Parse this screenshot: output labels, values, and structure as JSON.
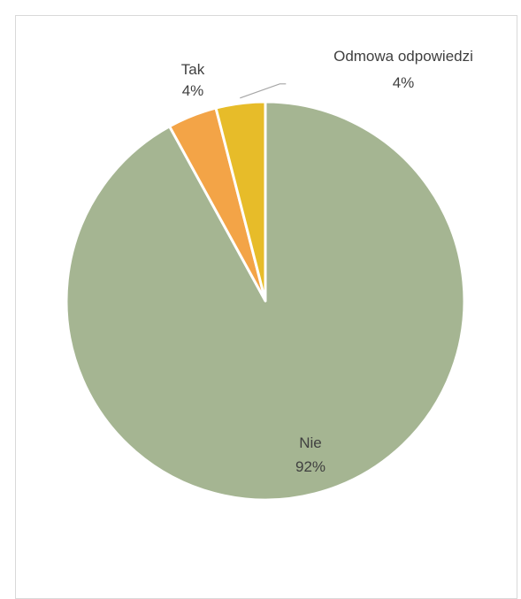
{
  "chart_data": {
    "type": "pie",
    "categories": [
      "Nie",
      "Tak",
      "Odmowa odpowiedzi"
    ],
    "values": [
      92,
      4,
      4
    ],
    "value_labels": [
      "92%",
      "4%",
      "4%"
    ],
    "colors": [
      "#a5b592",
      "#f3a447",
      "#e7bc29"
    ],
    "title": "",
    "legend": "none",
    "start_angle_deg": 0,
    "direction": "clockwise"
  }
}
